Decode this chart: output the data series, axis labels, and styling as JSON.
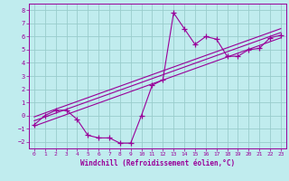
{
  "xlabel": "Windchill (Refroidissement éolien,°C)",
  "bg_color": "#c0ecee",
  "grid_color": "#99cccc",
  "line_color": "#990099",
  "xlim": [
    -0.5,
    23.5
  ],
  "ylim": [
    -2.5,
    8.5
  ],
  "xticks": [
    0,
    1,
    2,
    3,
    4,
    5,
    6,
    7,
    8,
    9,
    10,
    11,
    12,
    13,
    14,
    15,
    16,
    17,
    18,
    19,
    20,
    21,
    22,
    23
  ],
  "yticks": [
    -2,
    -1,
    0,
    1,
    2,
    3,
    4,
    5,
    6,
    7,
    8
  ],
  "data_x": [
    0,
    1,
    2,
    3,
    4,
    5,
    6,
    7,
    8,
    9,
    10,
    11,
    12,
    13,
    14,
    15,
    16,
    17,
    18,
    19,
    20,
    21,
    22,
    23
  ],
  "data_y": [
    -0.7,
    0.0,
    0.4,
    0.4,
    -0.3,
    -1.5,
    -1.7,
    -1.7,
    -2.1,
    -2.1,
    0.0,
    2.3,
    2.7,
    7.8,
    6.6,
    5.4,
    6.0,
    5.8,
    4.5,
    4.5,
    5.0,
    5.1,
    5.9,
    6.1
  ],
  "trend_lines": [
    {
      "x": [
        0,
        23
      ],
      "y": [
        -0.8,
        5.9
      ]
    },
    {
      "x": [
        0,
        23
      ],
      "y": [
        -0.4,
        6.3
      ]
    },
    {
      "x": [
        0,
        23
      ],
      "y": [
        -0.1,
        6.6
      ]
    }
  ]
}
